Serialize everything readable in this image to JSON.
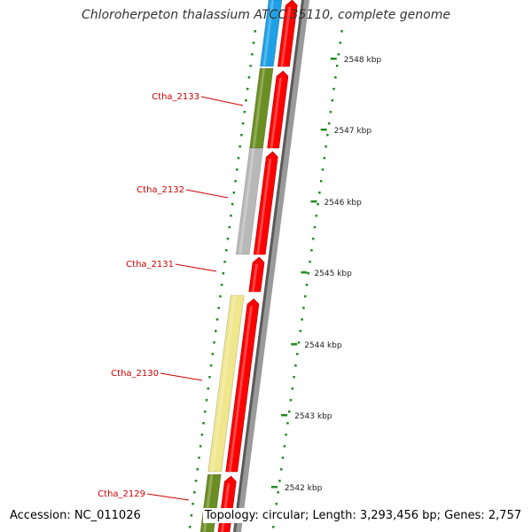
{
  "title": "Chloroherpeton thalassium ATCC 35110, complete genome",
  "footer": {
    "accession": "Accession: NC_011026",
    "topology": "Topology: circular; Length: 3,293,456 bp; Genes: 2,757"
  },
  "colors": {
    "cds_forward": "#ff0000",
    "gene_olive": "#6b8e23",
    "gene_gray": "#b8b8b8",
    "gene_pale_yellow": "#f0e68c",
    "gene_blue": "#1ea0e6",
    "ticks": "#228b22",
    "backbone": "#808080",
    "gene_label": "#cc0000"
  },
  "ruler": {
    "labels": [
      "2548 kbp",
      "2547 kbp",
      "2546 kbp",
      "2545 kbp",
      "2544 kbp",
      "2543 kbp",
      "2542 kbp"
    ]
  },
  "genes": [
    {
      "id": "Ctha_2133",
      "color": "gene_olive"
    },
    {
      "id": "Ctha_2132",
      "color": "gene_gray"
    },
    {
      "id": "Ctha_2131",
      "color": "none"
    },
    {
      "id": "Ctha_2130",
      "color": "gene_pale_yellow"
    },
    {
      "id": "Ctha_2129",
      "color": "gene_olive"
    }
  ]
}
